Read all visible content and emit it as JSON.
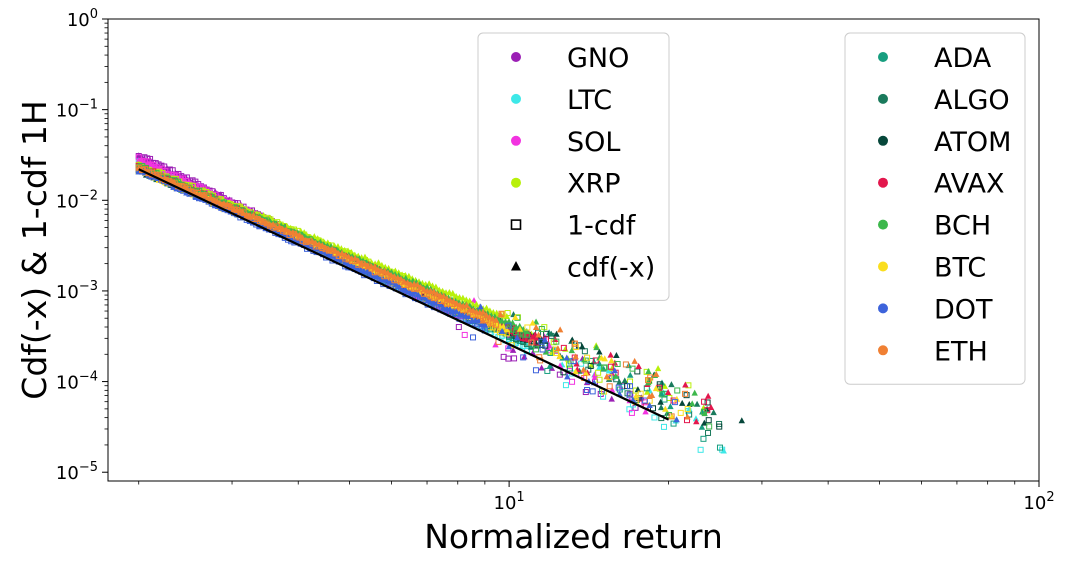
{
  "chart_data": {
    "type": "scatter",
    "xscale": "log",
    "yscale": "log",
    "xlim": [
      1.75,
      100
    ],
    "ylim": [
      8e-06,
      1
    ],
    "xlabel": "Normalized return",
    "ylabel": "Cdf(-x) & 1-cdf 1H",
    "x_ticks": [
      {
        "value": 10,
        "base": "10",
        "exp": "1"
      },
      {
        "value": 100,
        "base": "10",
        "exp": "2"
      }
    ],
    "y_ticks": [
      {
        "value": 1,
        "base": "10",
        "exp": "0"
      },
      {
        "value": 0.1,
        "base": "10",
        "exp": "−1"
      },
      {
        "value": 0.01,
        "base": "10",
        "exp": "−2"
      },
      {
        "value": 0.001,
        "base": "10",
        "exp": "−3"
      },
      {
        "value": 0.0001,
        "base": "10",
        "exp": "−4"
      },
      {
        "value": 1e-05,
        "base": "10",
        "exp": "−5"
      }
    ],
    "series": [
      {
        "name": "GNO",
        "color": "#9b1fb5",
        "y0": 0.032,
        "alpha": 2.9,
        "xmax": 17
      },
      {
        "name": "LTC",
        "color": "#3de8e8",
        "y0": 0.026,
        "alpha": 2.75,
        "xmax": 24
      },
      {
        "name": "SOL",
        "color": "#f233e0",
        "y0": 0.029,
        "alpha": 2.8,
        "xmax": 18
      },
      {
        "name": "XRP",
        "color": "#b8f00a",
        "y0": 0.025,
        "alpha": 2.45,
        "xmax": 22
      },
      {
        "name": "ADA",
        "color": "#179e7f",
        "y0": 0.023,
        "alpha": 2.6,
        "xmax": 24
      },
      {
        "name": "ALGO",
        "color": "#1a7a5c",
        "y0": 0.022,
        "alpha": 2.55,
        "xmax": 24
      },
      {
        "name": "ATOM",
        "color": "#06473a",
        "y0": 0.022,
        "alpha": 2.5,
        "xmax": 26
      },
      {
        "name": "AVAX",
        "color": "#e3174d",
        "y0": 0.024,
        "alpha": 2.55,
        "xmax": 25
      },
      {
        "name": "BCH",
        "color": "#3db84c",
        "y0": 0.024,
        "alpha": 2.5,
        "xmax": 24
      },
      {
        "name": "BTC",
        "color": "#fade1e",
        "y0": 0.022,
        "alpha": 2.55,
        "xmax": 22
      },
      {
        "name": "DOT",
        "color": "#3d63db",
        "y0": 0.022,
        "alpha": 2.65,
        "xmax": 20
      },
      {
        "name": "ETH",
        "color": "#f08033",
        "y0": 0.023,
        "alpha": 2.5,
        "xmax": 21
      }
    ],
    "fit_line": {
      "x": [
        2,
        20
      ],
      "y": [
        0.022,
        3.8e-05
      ],
      "color": "#000000"
    },
    "legend_left": {
      "position": "upper-center",
      "entries": [
        {
          "label": "GNO",
          "marker": "circle",
          "color": "#9b1fb5"
        },
        {
          "label": "LTC",
          "marker": "circle",
          "color": "#3de8e8"
        },
        {
          "label": "SOL",
          "marker": "circle",
          "color": "#f233e0"
        },
        {
          "label": "XRP",
          "marker": "circle",
          "color": "#b8f00a"
        },
        {
          "label": "1-cdf",
          "marker": "square-open",
          "color": "#000000"
        },
        {
          "label": "cdf(-x)",
          "marker": "triangle",
          "color": "#000000"
        }
      ]
    },
    "legend_right": {
      "position": "upper-right",
      "entries": [
        {
          "label": "ADA",
          "marker": "circle",
          "color": "#179e7f"
        },
        {
          "label": "ALGO",
          "marker": "circle",
          "color": "#1a7a5c"
        },
        {
          "label": "ATOM",
          "marker": "circle",
          "color": "#06473a"
        },
        {
          "label": "AVAX",
          "marker": "circle",
          "color": "#e3174d"
        },
        {
          "label": "BCH",
          "marker": "circle",
          "color": "#3db84c"
        },
        {
          "label": "BTC",
          "marker": "circle",
          "color": "#fade1e"
        },
        {
          "label": "DOT",
          "marker": "circle",
          "color": "#3d63db"
        },
        {
          "label": "ETH",
          "marker": "circle",
          "color": "#f08033"
        }
      ]
    }
  }
}
